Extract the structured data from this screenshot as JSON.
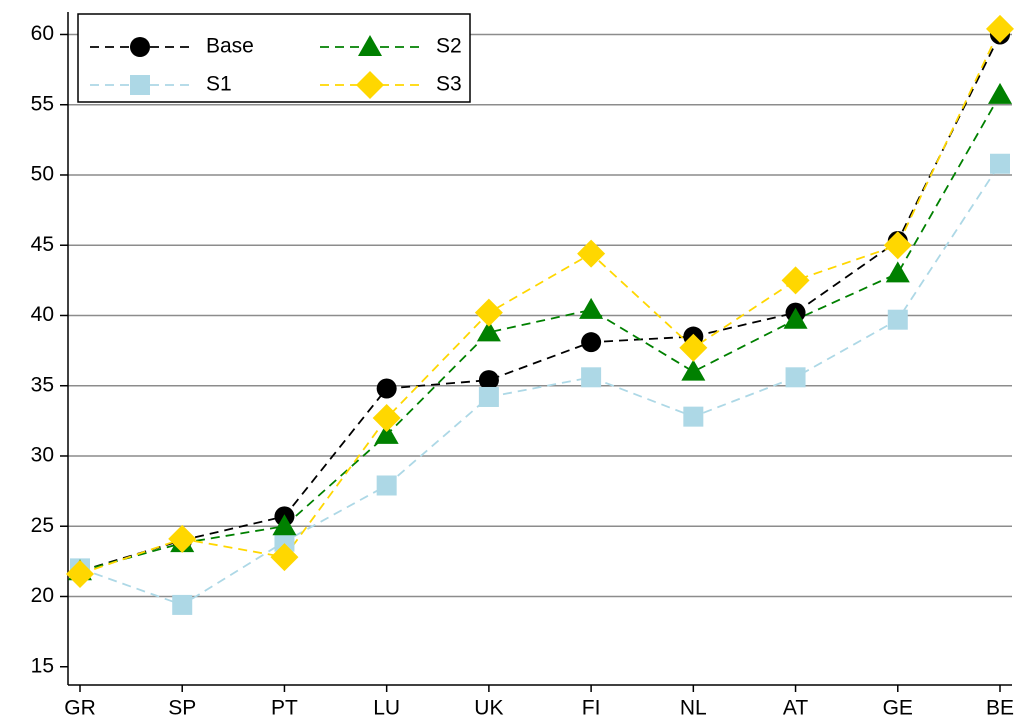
{
  "chart_data": {
    "type": "line",
    "categories": [
      "GR",
      "SP",
      "PT",
      "LU",
      "UK",
      "FI",
      "NL",
      "AT",
      "GE",
      "BE"
    ],
    "series": [
      {
        "name": "Base",
        "color": "#000000",
        "marker": "circle",
        "values": [
          21.8,
          24.0,
          25.7,
          34.8,
          35.4,
          38.1,
          38.5,
          40.2,
          45.3,
          60.0
        ]
      },
      {
        "name": "S1",
        "color": "#add8e6",
        "marker": "square",
        "values": [
          22.0,
          19.4,
          23.9,
          27.9,
          34.2,
          35.6,
          32.8,
          35.6,
          39.7,
          50.8
        ]
      },
      {
        "name": "S2",
        "color": "#008000",
        "marker": "triangle",
        "values": [
          21.8,
          23.8,
          25.0,
          31.5,
          38.8,
          40.4,
          36.0,
          39.7,
          43.0,
          55.7
        ]
      },
      {
        "name": "S3",
        "color": "#ffd700",
        "marker": "diamond",
        "values": [
          21.6,
          24.1,
          22.8,
          32.7,
          40.2,
          44.4,
          37.7,
          42.5,
          45.0,
          60.4
        ]
      }
    ],
    "ylim": [
      13.7,
      61.6
    ],
    "yticks": [
      15,
      20,
      25,
      30,
      35,
      40,
      45,
      50,
      55,
      60
    ],
    "grid": true,
    "legend": "upper-left",
    "dashed": true
  }
}
